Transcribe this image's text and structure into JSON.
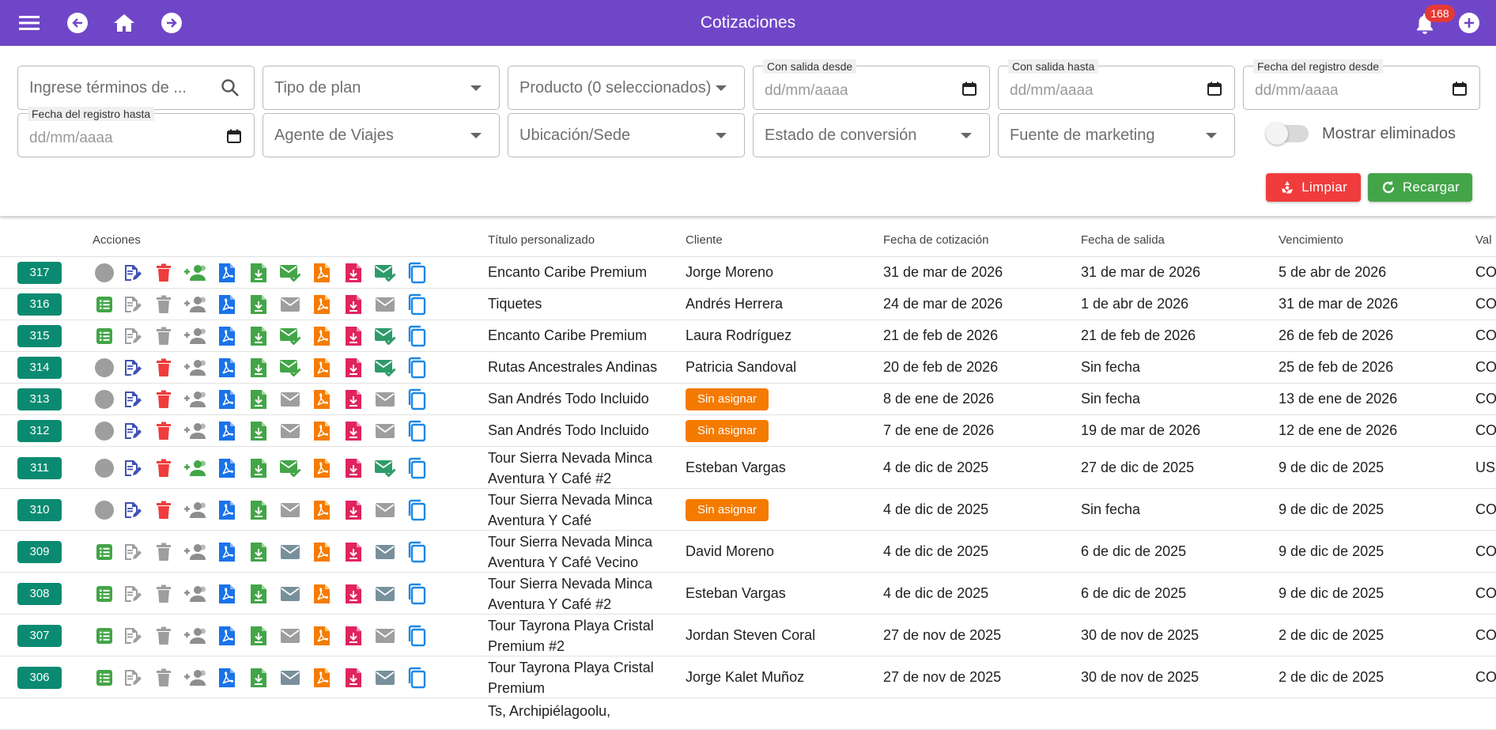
{
  "appbar": {
    "title": "Cotizaciones",
    "notifications_count": "168",
    "color": "#7046c8"
  },
  "filters": {
    "search_placeholder": "Ingrese términos de ...",
    "plan_type_placeholder": "Tipo de plan",
    "product_placeholder": "Producto (0 seleccionados)",
    "departure_from_label": "Con salida desde",
    "departure_to_label": "Con salida hasta",
    "registration_from_label": "Fecha del registro desde",
    "registration_to_label": "Fecha del registro hasta",
    "date_placeholder": "dd/mm/aaaa",
    "agent_placeholder": "Agente de Viajes",
    "location_placeholder": "Ubicación/Sede",
    "conversion_placeholder": "Estado de conversión",
    "marketing_placeholder": "Fuente de marketing",
    "show_deleted_label": "Mostrar eliminados",
    "show_deleted": false,
    "clear_label": "Limpiar",
    "reload_label": "Recargar"
  },
  "table": {
    "headers": {
      "actions": "Acciones",
      "title": "Título personalizado",
      "client": "Cliente",
      "quote_date": "Fecha de cotización",
      "departure_date": "Fecha de salida",
      "expiry": "Vencimiento",
      "value": "Val"
    },
    "rows": [
      {
        "id": "317",
        "mode": "active",
        "title": "Encanto Caribe Premium",
        "client": "Jorge Moreno",
        "unassigned": false,
        "quote_date": "31 de mar de 2026",
        "departure": "31 de mar de 2026",
        "expiry": "5 de abr de 2026",
        "value": "CO",
        "sent": true,
        "shared": true
      },
      {
        "id": "316",
        "mode": "locked",
        "title": "Tiquetes",
        "client": "Andrés Herrera",
        "unassigned": false,
        "quote_date": "24 de mar de 2026",
        "departure": "1 de abr de 2026",
        "expiry": "31 de mar de 2026",
        "value": "CO",
        "sent": false,
        "shared": false
      },
      {
        "id": "315",
        "mode": "locked",
        "title": "Encanto Caribe Premium",
        "client": "Laura Rodríguez",
        "unassigned": false,
        "quote_date": "21 de feb de 2026",
        "departure": "21 de feb de 2026",
        "expiry": "26 de feb de 2026",
        "value": "CO",
        "sent": true,
        "shared": false
      },
      {
        "id": "314",
        "mode": "active",
        "title": "Rutas Ancestrales Andinas",
        "client": "Patricia Sandoval",
        "unassigned": false,
        "quote_date": "20 de feb de 2026",
        "departure": "Sin fecha",
        "expiry": "25 de feb de 2026",
        "value": "CO",
        "sent": true,
        "shared": false
      },
      {
        "id": "313",
        "mode": "active",
        "title": "San Andrés Todo Incluido",
        "client": "Sin asignar",
        "unassigned": true,
        "quote_date": "8 de ene de 2026",
        "departure": "Sin fecha",
        "expiry": "13 de ene de 2026",
        "value": "CO",
        "sent": false,
        "shared": false
      },
      {
        "id": "312",
        "mode": "active",
        "title": "San Andrés Todo Incluido",
        "client": "Sin asignar",
        "unassigned": true,
        "quote_date": "7 de ene de 2026",
        "departure": "19 de mar de 2026",
        "expiry": "12 de ene de 2026",
        "value": "CO",
        "sent": false,
        "shared": false
      },
      {
        "id": "311",
        "mode": "active",
        "title": "Tour Sierra Nevada Minca Aventura Y Café #2",
        "client": "Esteban Vargas",
        "unassigned": false,
        "quote_date": "4 de dic de 2025",
        "departure": "27 de dic de 2025",
        "expiry": "9 de dic de 2025",
        "value": "US",
        "sent": true,
        "shared": true
      },
      {
        "id": "310",
        "mode": "active",
        "title": "Tour Sierra Nevada Minca Aventura Y Café",
        "client": "Sin asignar",
        "unassigned": true,
        "quote_date": "4 de dic de 2025",
        "departure": "Sin fecha",
        "expiry": "9 de dic de 2025",
        "value": "CO",
        "sent": false,
        "shared": false
      },
      {
        "id": "309",
        "mode": "locked",
        "title": "Tour Sierra Nevada Minca Aventura Y Café Vecino",
        "client": "David Moreno",
        "unassigned": false,
        "quote_date": "4 de dic de 2025",
        "departure": "6 de dic de 2025",
        "expiry": "9 de dic de 2025",
        "value": "CO",
        "sent": "dark",
        "shared": false
      },
      {
        "id": "308",
        "mode": "locked",
        "title": "Tour Sierra Nevada Minca Aventura Y Café #2",
        "client": "Esteban Vargas",
        "unassigned": false,
        "quote_date": "4 de dic de 2025",
        "departure": "6 de dic de 2025",
        "expiry": "9 de dic de 2025",
        "value": "CO",
        "sent": "dark",
        "shared": false
      },
      {
        "id": "307",
        "mode": "locked",
        "title": "Tour Tayrona Playa Cristal Premium #2",
        "client": "Jordan Steven Coral",
        "unassigned": false,
        "quote_date": "27 de nov de 2025",
        "departure": "30 de nov de 2025",
        "expiry": "2 de dic de 2025",
        "value": "CO",
        "sent": false,
        "shared": false
      },
      {
        "id": "306",
        "mode": "locked",
        "title": "Tour Tayrona Playa Cristal Premium",
        "client": "Jorge Kalet Muñoz",
        "unassigned": false,
        "quote_date": "27 de nov de 2025",
        "departure": "30 de nov de 2025",
        "expiry": "2 de dic de 2025",
        "value": "CO",
        "sent": "dark",
        "shared": false
      },
      {
        "id": "",
        "mode": "partial",
        "title": "Ts, Archipiélagoolu,",
        "client": "",
        "unassigned": false,
        "quote_date": "",
        "departure": "",
        "expiry": "",
        "value": "",
        "sent": false,
        "shared": false
      }
    ]
  }
}
